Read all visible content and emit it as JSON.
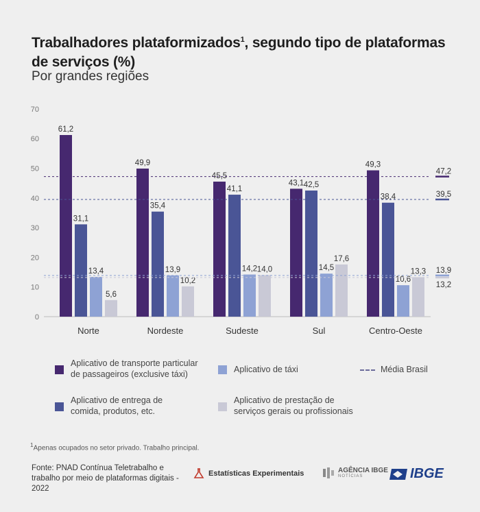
{
  "title": "Trabalhadores plataformizados",
  "title_sup": "1",
  "title_rest": ", segundo tipo de plataformas de serviços (%)",
  "subtitle": "Por grandes regiões",
  "chart_data": {
    "type": "bar",
    "categories": [
      "Norte",
      "Nordeste",
      "Sudeste",
      "Sul",
      "Centro-Oeste"
    ],
    "series": [
      {
        "name": "Aplicativo de transporte particular de passageiros (exclusive táxi)",
        "values": [
          61.2,
          49.9,
          45.5,
          43.1,
          49.3
        ],
        "labels": [
          "61,2",
          "49,9",
          "45,5",
          "43,1",
          "49,3"
        ],
        "color": "#46286f"
      },
      {
        "name": "Aplicativo de entrega de comida, produtos, etc.",
        "values": [
          31.1,
          35.4,
          41.1,
          42.5,
          38.4
        ],
        "labels": [
          "31,1",
          "35,4",
          "41,1",
          "42,5",
          "38,4"
        ],
        "color": "#4a5596"
      },
      {
        "name": "Aplicativo de táxi",
        "values": [
          13.4,
          13.9,
          14.2,
          14.5,
          10.6
        ],
        "labels": [
          "13,4",
          "13,9",
          "14,2",
          "14,5",
          "10,6"
        ],
        "color": "#8ea2d4"
      },
      {
        "name": "Aplicativo de prestação de serviços gerais ou profissionais",
        "values": [
          5.6,
          10.2,
          14.0,
          17.6,
          13.3
        ],
        "labels": [
          "5,6",
          "10,2",
          "14,0",
          "17,6",
          "13,3"
        ],
        "color": "#c9c9d6"
      }
    ],
    "reference_lines": [
      {
        "name": "Média Brasil",
        "value": 47.2,
        "label": "47,2",
        "color": "#46286f"
      },
      {
        "name": "Média Brasil",
        "value": 39.5,
        "label": "39,5",
        "color": "#4a5596"
      },
      {
        "name": "Média Brasil",
        "value": 13.9,
        "label": "13,9",
        "color": "#8ea2d4"
      },
      {
        "name": "Média Brasil",
        "value": 13.2,
        "label": "13,2",
        "color": "#c9c9d6"
      }
    ],
    "yticks": [
      0,
      10,
      20,
      30,
      40,
      50,
      60,
      70
    ],
    "ylim": [
      0,
      70
    ],
    "xlabel": "",
    "ylabel": "",
    "grid": false,
    "legend_position": "bottom"
  },
  "legend": {
    "transport": "Aplicativo de transporte particular\nde passageiros (exclusive táxi)",
    "taxi": "Aplicativo de táxi",
    "media": "Média Brasil",
    "delivery": "Aplicativo de entrega de\ncomida, produtos, etc.",
    "services": "Aplicativo de prestação de\nserviços gerais ou profissionais"
  },
  "footnote_sup": "1",
  "footnote": "Apenas ocupados no setor privado. Trabalho principal.",
  "source": "Fonte: PNAD Contínua Teletrabalho e trabalho por meio de plataformas digitais - 2022",
  "logos": {
    "estatisticas": "Estatísticas Experimentais",
    "agencia": "AGÊNCIA IBGE",
    "agencia_sub": "NOTÍCIAS",
    "ibge": "IBGE"
  },
  "colors": {
    "background": "#efefef",
    "transport": "#46286f",
    "delivery": "#4a5596",
    "taxi": "#8ea2d4",
    "services": "#c9c9d6"
  }
}
